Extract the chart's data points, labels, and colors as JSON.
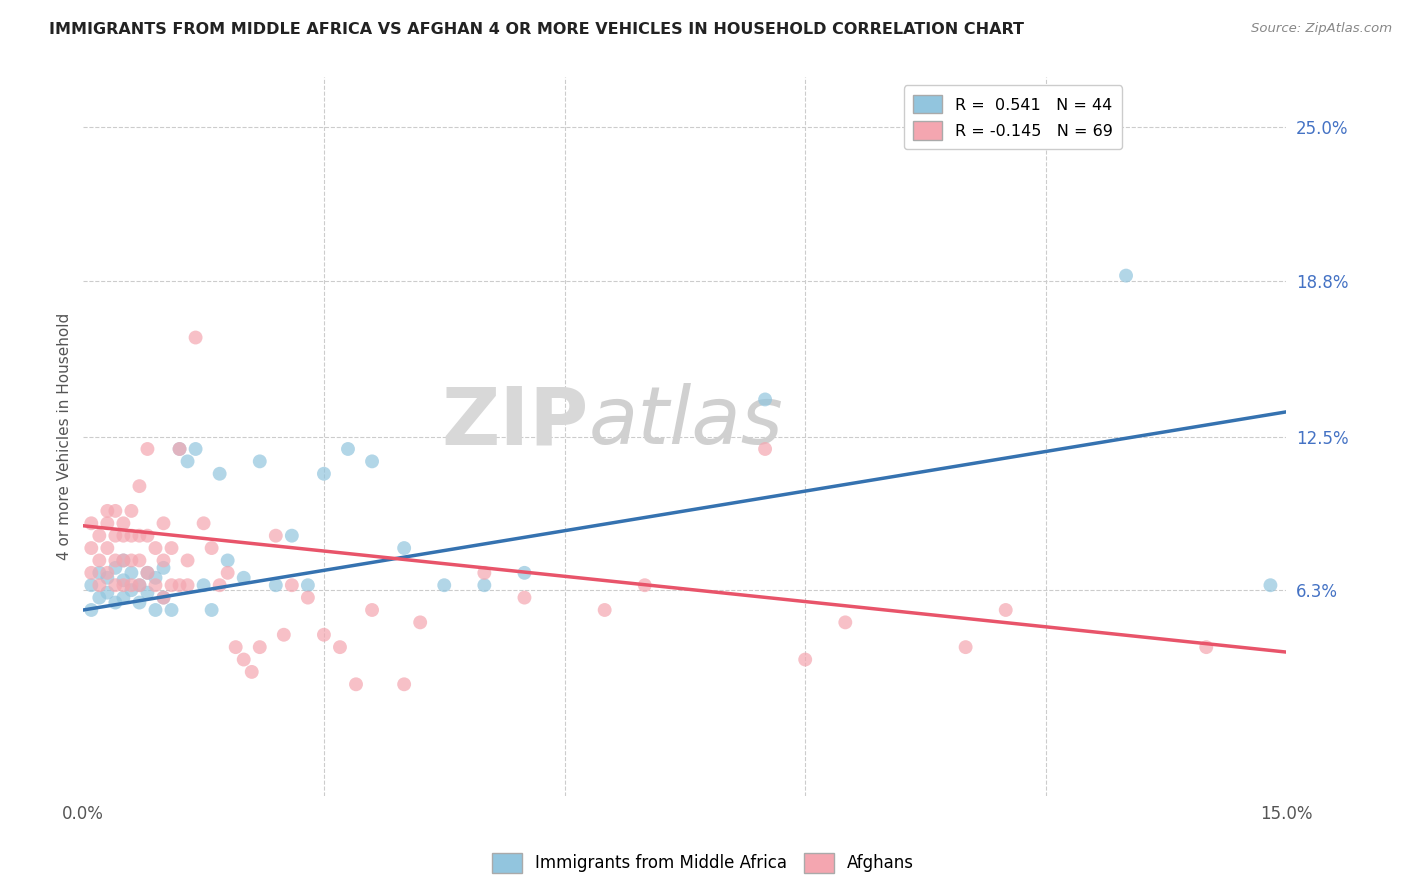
{
  "title": "IMMIGRANTS FROM MIDDLE AFRICA VS AFGHAN 4 OR MORE VEHICLES IN HOUSEHOLD CORRELATION CHART",
  "source": "Source: ZipAtlas.com",
  "ylabel": "4 or more Vehicles in Household",
  "xlim": [
    0.0,
    0.15
  ],
  "ylim": [
    -0.02,
    0.27
  ],
  "xtick_positions": [
    0.0,
    0.03,
    0.06,
    0.09,
    0.12,
    0.15
  ],
  "xticklabels": [
    "0.0%",
    "",
    "",
    "",
    "",
    "15.0%"
  ],
  "yticks_right": [
    0.063,
    0.125,
    0.188,
    0.25
  ],
  "ytick_labels_right": [
    "6.3%",
    "12.5%",
    "18.8%",
    "25.0%"
  ],
  "blue_R": 0.541,
  "blue_N": 44,
  "pink_R": -0.145,
  "pink_N": 69,
  "blue_color": "#92c5de",
  "pink_color": "#f4a6b0",
  "blue_line_color": "#3572b0",
  "pink_line_color": "#e8546a",
  "legend_label_blue": "Immigrants from Middle Africa",
  "legend_label_pink": "Afghans",
  "watermark_zip": "ZIP",
  "watermark_atlas": "atlas",
  "blue_x": [
    0.001,
    0.001,
    0.002,
    0.002,
    0.003,
    0.003,
    0.004,
    0.004,
    0.005,
    0.005,
    0.005,
    0.006,
    0.006,
    0.007,
    0.007,
    0.008,
    0.008,
    0.009,
    0.009,
    0.01,
    0.01,
    0.011,
    0.012,
    0.013,
    0.014,
    0.015,
    0.016,
    0.017,
    0.018,
    0.02,
    0.022,
    0.024,
    0.026,
    0.028,
    0.03,
    0.033,
    0.036,
    0.04,
    0.045,
    0.05,
    0.055,
    0.085,
    0.13,
    0.148
  ],
  "blue_y": [
    0.055,
    0.065,
    0.06,
    0.07,
    0.062,
    0.068,
    0.058,
    0.072,
    0.06,
    0.067,
    0.075,
    0.063,
    0.07,
    0.058,
    0.065,
    0.062,
    0.07,
    0.055,
    0.068,
    0.06,
    0.072,
    0.055,
    0.12,
    0.115,
    0.12,
    0.065,
    0.055,
    0.11,
    0.075,
    0.068,
    0.115,
    0.065,
    0.085,
    0.065,
    0.11,
    0.12,
    0.115,
    0.08,
    0.065,
    0.065,
    0.07,
    0.14,
    0.19,
    0.065
  ],
  "pink_x": [
    0.001,
    0.001,
    0.001,
    0.002,
    0.002,
    0.002,
    0.003,
    0.003,
    0.003,
    0.003,
    0.004,
    0.004,
    0.004,
    0.004,
    0.005,
    0.005,
    0.005,
    0.005,
    0.006,
    0.006,
    0.006,
    0.006,
    0.007,
    0.007,
    0.007,
    0.007,
    0.008,
    0.008,
    0.008,
    0.009,
    0.009,
    0.01,
    0.01,
    0.01,
    0.011,
    0.011,
    0.012,
    0.012,
    0.013,
    0.013,
    0.014,
    0.015,
    0.016,
    0.017,
    0.018,
    0.019,
    0.02,
    0.021,
    0.022,
    0.024,
    0.025,
    0.026,
    0.028,
    0.03,
    0.032,
    0.034,
    0.036,
    0.04,
    0.042,
    0.05,
    0.055,
    0.065,
    0.07,
    0.085,
    0.09,
    0.095,
    0.11,
    0.115,
    0.14
  ],
  "pink_y": [
    0.07,
    0.08,
    0.09,
    0.065,
    0.075,
    0.085,
    0.07,
    0.08,
    0.09,
    0.095,
    0.065,
    0.075,
    0.085,
    0.095,
    0.065,
    0.075,
    0.085,
    0.09,
    0.065,
    0.075,
    0.085,
    0.095,
    0.065,
    0.075,
    0.085,
    0.105,
    0.07,
    0.085,
    0.12,
    0.065,
    0.08,
    0.06,
    0.075,
    0.09,
    0.065,
    0.08,
    0.065,
    0.12,
    0.065,
    0.075,
    0.165,
    0.09,
    0.08,
    0.065,
    0.07,
    0.04,
    0.035,
    0.03,
    0.04,
    0.085,
    0.045,
    0.065,
    0.06,
    0.045,
    0.04,
    0.025,
    0.055,
    0.025,
    0.05,
    0.07,
    0.06,
    0.055,
    0.065,
    0.12,
    0.035,
    0.05,
    0.04,
    0.055,
    0.04
  ],
  "pink_line_start_y": 0.089,
  "pink_line_end_y": 0.038,
  "blue_line_start_y": 0.055,
  "blue_line_end_y": 0.135
}
